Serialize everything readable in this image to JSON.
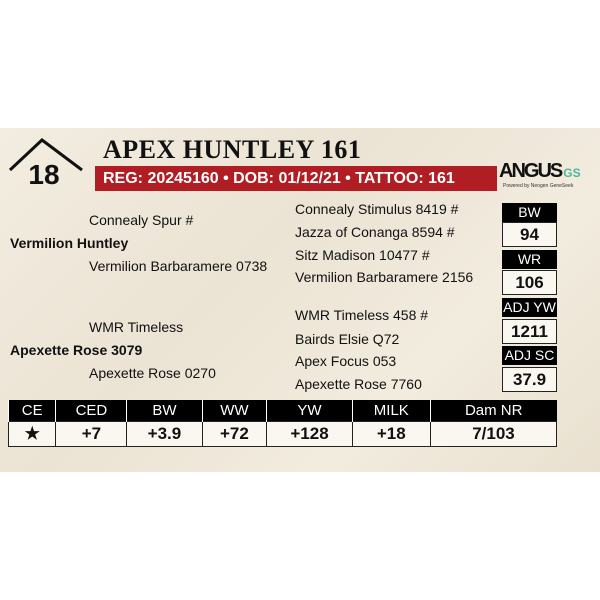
{
  "lot": {
    "number": "18",
    "name": "APEX HUNTLEY 161",
    "info": "REG: 20245160 • DOB: 01/12/21 • TATTOO: 161"
  },
  "logo": {
    "text": "ANGUS",
    "suffix": "GS",
    "tagline": "Powered by Neogen GeneSeek"
  },
  "pedigree": {
    "sire": "Vermilion Huntley",
    "sire_sire": "Connealy Spur #",
    "sire_dam": "Vermilion Barbaramere 0738",
    "ss_sire": "Connealy Stimulus 8419 #",
    "ss_dam": "Jazza of Conanga 8594 #",
    "sd_sire": "Sitz Madison 10477 #",
    "sd_dam": "Vermilion Barbaramere 2156",
    "dam": "Apexette Rose 3079",
    "dam_sire": "WMR Timeless",
    "dam_dam": "Apexette Rose 0270",
    "ds_sire": "WMR Timeless 458 #",
    "ds_dam": "Bairds Elsie Q72",
    "dd_sire": "Apex Focus 053",
    "dd_dam": "Apexette Rose 7760"
  },
  "stats": [
    {
      "label": "BW",
      "value": "94"
    },
    {
      "label": "WR",
      "value": "106"
    },
    {
      "label": "ADJ YW",
      "value": "1211"
    },
    {
      "label": "ADJ SC",
      "value": "37.9"
    }
  ],
  "epds": {
    "headers": [
      "CE",
      "CED",
      "BW",
      "WW",
      "YW",
      "MILK",
      "Dam NR"
    ],
    "values": [
      "★",
      "+7",
      "+3.9",
      "+72",
      "+128",
      "+18",
      "7/103"
    ]
  },
  "colors": {
    "banner": "#b01e23",
    "logo_accent": "#4fb79a"
  }
}
